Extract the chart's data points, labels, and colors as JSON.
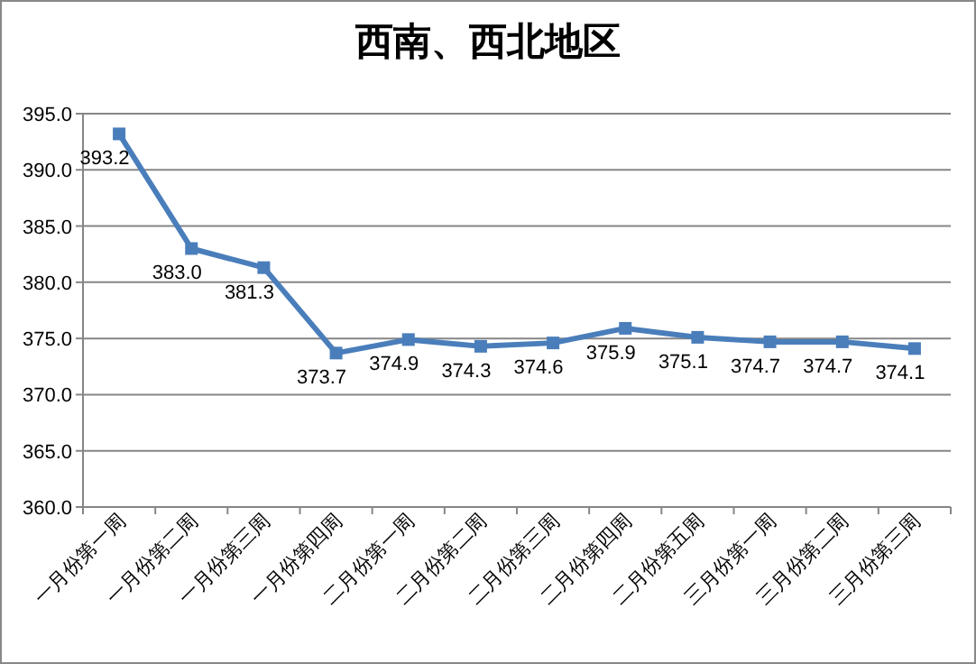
{
  "chart_data": {
    "type": "line",
    "title": "西南、西北地区",
    "categories": [
      "一月份第一周",
      "一月份第二周",
      "一月份第三周",
      "一月份第四周",
      "二月份第一周",
      "二月份第二周",
      "二月份第三周",
      "二月份第四周",
      "二月份第五周",
      "三月份第一周",
      "三月份第二周",
      "三月份第三周"
    ],
    "series": [
      {
        "color": "#4a7ebb",
        "values": [
          393.2,
          383.0,
          381.3,
          373.7,
          374.9,
          374.3,
          374.6,
          375.9,
          375.1,
          374.7,
          374.7,
          374.1
        ],
        "value_labels": [
          "393.2",
          "383.0",
          "381.3",
          "373.7",
          "374.9",
          "374.3",
          "374.6",
          "375.9",
          "375.1",
          "374.7",
          "374.7",
          "374.1"
        ]
      }
    ],
    "ylim": [
      360,
      395
    ],
    "yticks": [
      {
        "value": 360,
        "label": "360.0"
      },
      {
        "value": 365,
        "label": "365.0"
      },
      {
        "value": 370,
        "label": "370.0"
      },
      {
        "value": 375,
        "label": "375.0"
      },
      {
        "value": 380,
        "label": "380.0"
      },
      {
        "value": 385,
        "label": "385.0"
      },
      {
        "value": 390,
        "label": "390.0"
      },
      {
        "value": 395,
        "label": "395.0"
      }
    ],
    "grid": "y",
    "marker": "square",
    "line_style": "solid"
  }
}
